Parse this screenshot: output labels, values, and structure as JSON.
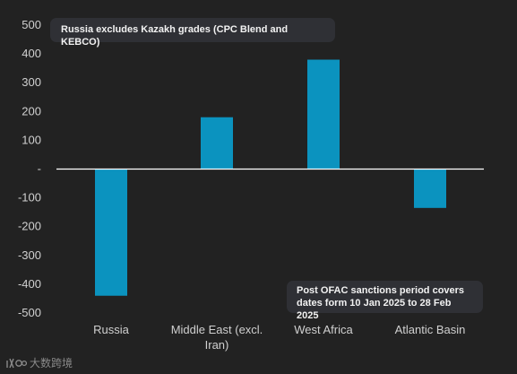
{
  "annotations": {
    "top_note": "Russia excludes Kazakh grades (CPC Blend and KEBCO)",
    "bottom_note": "Post OFAC sanctions period covers\ndates form 10 Jan 2025 to 28 Feb 2025"
  },
  "watermark": {
    "text": "大数跨境"
  },
  "colors": {
    "background": "#222222",
    "bar": "#0b93bf",
    "zero_line": "#ffffff",
    "text": "#d0d0d0"
  },
  "chart_data": {
    "type": "bar",
    "categories": [
      "Russia",
      "Middle East (excl.\nIran)",
      "West Africa",
      "Atlantic Basin"
    ],
    "values": [
      -440,
      180,
      380,
      -135
    ],
    "ylim": [
      -500,
      500
    ],
    "yticks": [
      500,
      400,
      300,
      200,
      100,
      0,
      -100,
      -200,
      -300,
      -400,
      -500
    ],
    "ytick_labels": [
      "500",
      "400",
      "300",
      "200",
      "100",
      "-",
      "-100",
      "-200",
      "-300",
      "-400",
      "-500"
    ],
    "grid": false
  }
}
